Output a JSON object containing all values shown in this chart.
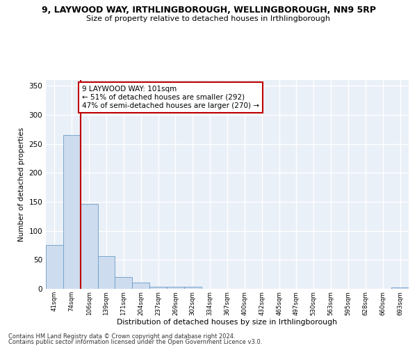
{
  "title_line1": "9, LAYWOOD WAY, IRTHLINGBOROUGH, WELLINGBOROUGH, NN9 5RP",
  "title_line2": "Size of property relative to detached houses in Irthlingborough",
  "xlabel": "Distribution of detached houses by size in Irthlingborough",
  "ylabel": "Number of detached properties",
  "categories": [
    "41sqm",
    "74sqm",
    "106sqm",
    "139sqm",
    "171sqm",
    "204sqm",
    "237sqm",
    "269sqm",
    "302sqm",
    "334sqm",
    "367sqm",
    "400sqm",
    "432sqm",
    "465sqm",
    "497sqm",
    "530sqm",
    "563sqm",
    "595sqm",
    "628sqm",
    "660sqm",
    "693sqm"
  ],
  "values": [
    76,
    265,
    146,
    56,
    21,
    11,
    4,
    4,
    4,
    0,
    0,
    0,
    0,
    0,
    0,
    0,
    0,
    0,
    0,
    0,
    3
  ],
  "bar_color": "#cddcee",
  "bar_edge_color": "#6a9cc8",
  "vline_index": 1.5,
  "vline_color": "#c00000",
  "annotation_text": "9 LAYWOOD WAY: 101sqm\n← 51% of detached houses are smaller (292)\n47% of semi-detached houses are larger (270) →",
  "annotation_box_color": "#ffffff",
  "annotation_box_edge": "#c00000",
  "ylim": [
    0,
    360
  ],
  "yticks": [
    0,
    50,
    100,
    150,
    200,
    250,
    300,
    350
  ],
  "background_color": "#eaf0f8",
  "grid_color": "#ffffff",
  "footer_line1": "Contains HM Land Registry data © Crown copyright and database right 2024.",
  "footer_line2": "Contains public sector information licensed under the Open Government Licence v3.0."
}
